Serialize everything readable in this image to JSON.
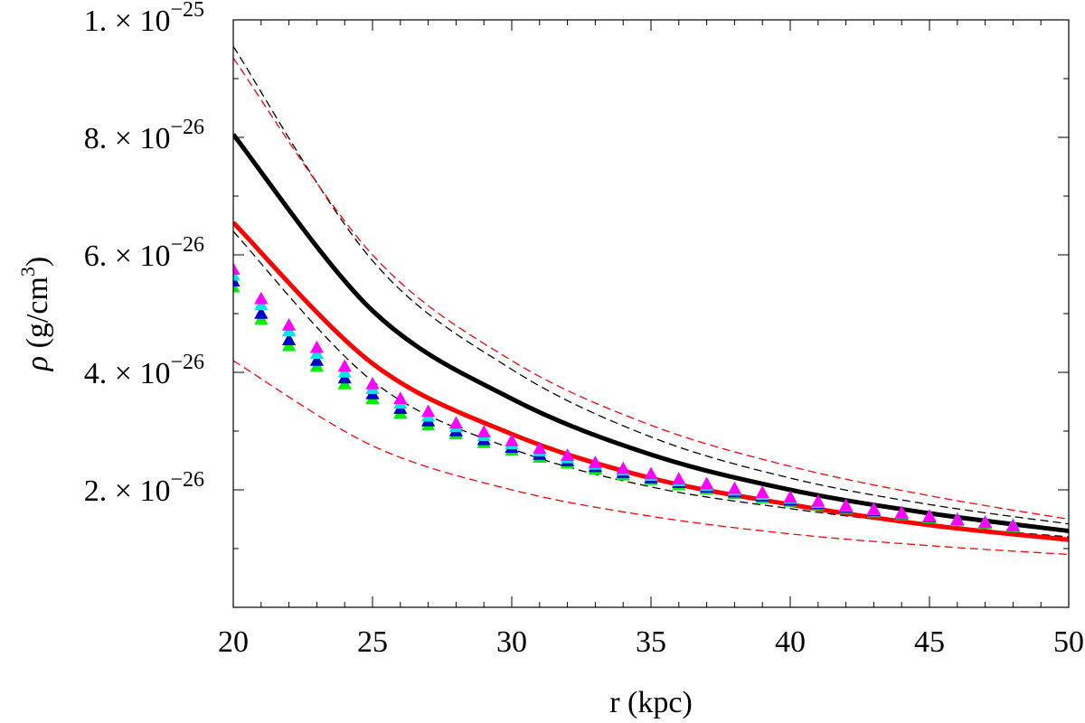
{
  "chart_data": {
    "type": "line",
    "title": "",
    "xlabel": "r (kpc)",
    "ylabel": {
      "symbol": "ρ",
      "text": " (g/cm",
      "sup": "3",
      "close": ")"
    },
    "xlim": [
      20,
      50
    ],
    "ylim": [
      0,
      1e-25
    ],
    "grid": false,
    "legend": "none",
    "x_ticks": [
      {
        "value": 20,
        "label": "20"
      },
      {
        "value": 25,
        "label": "25"
      },
      {
        "value": 30,
        "label": "30"
      },
      {
        "value": 35,
        "label": "35"
      },
      {
        "value": 40,
        "label": "40"
      },
      {
        "value": 45,
        "label": "45"
      },
      {
        "value": 50,
        "label": "50"
      }
    ],
    "y_ticks": [
      {
        "value": 2e-26,
        "mant": "2.",
        "times": "×",
        "base": "10",
        "exp": "−26"
      },
      {
        "value": 4e-26,
        "mant": "4.",
        "times": "×",
        "base": "10",
        "exp": "−26"
      },
      {
        "value": 6e-26,
        "mant": "6.",
        "times": "×",
        "base": "10",
        "exp": "−26"
      },
      {
        "value": 8e-26,
        "mant": "8.",
        "times": "×",
        "base": "10",
        "exp": "−26"
      },
      {
        "value": 1e-25,
        "mant": "1.",
        "times": "×",
        "base": "10",
        "exp": "−25"
      }
    ],
    "y_minor_step": 1e-26,
    "x_minor_step": 1,
    "curves": [
      {
        "color": "#000000",
        "style": "solid",
        "width": 5,
        "x": [
          20,
          25,
          30,
          35,
          40,
          45,
          50
        ],
        "y": [
          8.05e-26,
          5.05e-26,
          3.55e-26,
          2.6e-26,
          2e-26,
          1.6e-26,
          1.3e-26
        ]
      },
      {
        "color": "#ff0000",
        "style": "solid",
        "width": 5,
        "x": [
          20,
          25,
          30,
          35,
          40,
          45,
          50
        ],
        "y": [
          6.55e-26,
          4.15e-26,
          2.95e-26,
          2.2e-26,
          1.75e-26,
          1.4e-26,
          1.15e-26
        ]
      },
      {
        "color": "#000000",
        "style": "dashed",
        "width": 1.3,
        "x": [
          20,
          25,
          30,
          35,
          40,
          45,
          50
        ],
        "y": [
          9.55e-26,
          5.9e-26,
          4.05e-26,
          2.9e-26,
          2.2e-26,
          1.75e-26,
          1.42e-26
        ]
      },
      {
        "color": "#000000",
        "style": "dashed",
        "width": 1.3,
        "x": [
          20,
          25,
          30,
          35,
          40,
          45,
          50
        ],
        "y": [
          6.4e-26,
          3.85e-26,
          2.7e-26,
          2.05e-26,
          1.68e-26,
          1.4e-26,
          1.2e-26
        ]
      },
      {
        "color": "#ff0000",
        "style": "dashed",
        "width": 1.3,
        "x": [
          20,
          25,
          30,
          35,
          40,
          45,
          50
        ],
        "y": [
          9.35e-26,
          6e-26,
          4.2e-26,
          3.1e-26,
          2.4e-26,
          1.9e-26,
          1.5e-26
        ]
      },
      {
        "color": "#ff0000",
        "style": "dashed",
        "width": 1.3,
        "x": [
          20,
          25,
          30,
          35,
          40,
          45,
          50
        ],
        "y": [
          4.2e-26,
          2.75e-26,
          2e-26,
          1.55e-26,
          1.25e-26,
          1.05e-26,
          9e-27
        ]
      }
    ],
    "series": [
      {
        "color": "#00ee00",
        "marker": "triangle",
        "x": [
          20,
          21,
          22,
          23,
          24,
          25,
          26,
          27,
          28,
          29,
          30,
          31,
          32,
          33,
          34,
          35,
          36,
          37,
          38,
          39,
          40,
          41,
          42,
          43,
          44,
          45,
          46,
          47,
          48
        ],
        "y": [
          5.45e-26,
          4.9e-26,
          4.45e-26,
          4.1e-26,
          3.8e-26,
          3.55e-26,
          3.3e-26,
          3.1e-26,
          2.95e-26,
          2.8e-26,
          2.67e-26,
          2.55e-26,
          2.45e-26,
          2.35e-26,
          2.25e-26,
          2.17e-26,
          2.08e-26,
          2.01e-26,
          1.93e-26,
          1.86e-26,
          1.8e-26,
          1.74e-26,
          1.68e-26,
          1.62e-26,
          1.57e-26,
          1.52e-26,
          1.47e-26,
          1.42e-26,
          1.37e-26
        ]
      },
      {
        "color": "#0000cc",
        "marker": "triangle",
        "x": [
          20,
          21,
          22,
          23,
          24,
          25,
          26,
          27,
          28,
          29,
          30,
          31,
          32,
          33,
          34,
          35,
          36,
          37,
          38,
          39,
          40,
          41,
          42,
          43,
          44,
          45,
          46,
          47,
          48
        ],
        "y": [
          5.55e-26,
          5e-26,
          4.55e-26,
          4.2e-26,
          3.9e-26,
          3.63e-26,
          3.38e-26,
          3.17e-26,
          3e-26,
          2.85e-26,
          2.72e-26,
          2.6e-26,
          2.49e-26,
          2.39e-26,
          2.29e-26,
          2.2e-26,
          2.12e-26,
          2.04e-26,
          1.96e-26,
          1.89e-26,
          1.82e-26,
          1.76e-26,
          1.7e-26,
          1.64e-26,
          1.59e-26,
          1.54e-26,
          1.49e-26,
          1.44e-26,
          1.39e-26
        ]
      },
      {
        "color": "#00e5e5",
        "marker": "triangle",
        "x": [
          20,
          21,
          22,
          23,
          24,
          25,
          26,
          27,
          28,
          29,
          30,
          31,
          32,
          33,
          34,
          35,
          36,
          37,
          38,
          39,
          40,
          41,
          42,
          43,
          44,
          45,
          46,
          47,
          48
        ],
        "y": [
          5.65e-26,
          5.15e-26,
          4.7e-26,
          4.32e-26,
          4e-26,
          3.72e-26,
          3.47e-26,
          3.25e-26,
          3.07e-26,
          2.92e-26,
          2.78e-26,
          2.66e-26,
          2.54e-26,
          2.43e-26,
          2.33e-26,
          2.24e-26,
          2.15e-26,
          2.07e-26,
          1.99e-26,
          1.92e-26,
          1.85e-26,
          1.78e-26,
          1.72e-26,
          1.66e-26,
          1.6e-26,
          1.55e-26,
          1.5e-26,
          1.45e-26,
          1.4e-26
        ]
      },
      {
        "color": "#ff00ff",
        "marker": "triangle",
        "x": [
          20,
          21,
          22,
          23,
          24,
          25,
          26,
          27,
          28,
          29,
          30,
          31,
          32,
          33,
          34,
          35,
          36,
          37,
          38,
          39,
          40,
          41,
          42,
          43,
          44,
          45,
          46,
          47,
          48
        ],
        "y": [
          5.75e-26,
          5.25e-26,
          4.8e-26,
          4.42e-26,
          4.1e-26,
          3.8e-26,
          3.55e-26,
          3.33e-26,
          3.13e-26,
          2.98e-26,
          2.83e-26,
          2.7e-26,
          2.58e-26,
          2.46e-26,
          2.36e-26,
          2.27e-26,
          2.18e-26,
          2.1e-26,
          2.02e-26,
          1.95e-26,
          1.87e-26,
          1.8e-26,
          1.73e-26,
          1.67e-26,
          1.61e-26,
          1.55e-26,
          1.49e-26,
          1.44e-26,
          1.38e-26
        ]
      }
    ]
  }
}
